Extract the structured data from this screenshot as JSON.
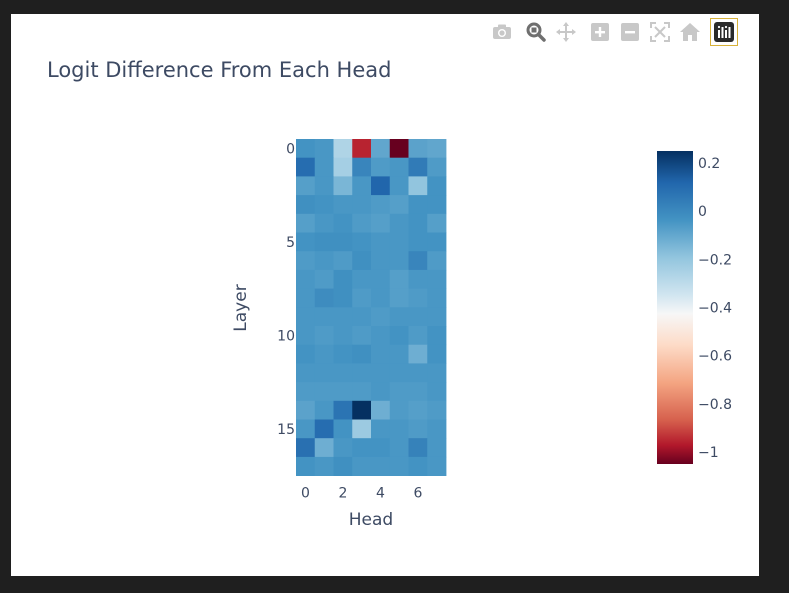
{
  "modebar": {
    "buttons": [
      {
        "icon": "camera-icon",
        "title": "Download plot as a png"
      },
      {
        "icon": "zoom-icon",
        "title": "Zoom"
      },
      {
        "icon": "pan-icon",
        "title": "Pan"
      },
      {
        "icon": "zoom-in-icon",
        "title": "Zoom in"
      },
      {
        "icon": "zoom-out-icon",
        "title": "Zoom out"
      },
      {
        "icon": "autoscale-icon",
        "title": "Autoscale"
      },
      {
        "icon": "home-icon",
        "title": "Reset axes"
      },
      {
        "icon": "plotly-logo-icon",
        "title": "Produced with Plotly"
      }
    ],
    "icon_color": "#c8c8c8",
    "active_color": "#6f6f6f",
    "logo_color": "#2a2a2a"
  },
  "chart_data": {
    "type": "heatmap",
    "title": "Logit Difference From Each Head",
    "xlabel": "Head",
    "ylabel": "Layer",
    "x": [
      0,
      1,
      2,
      3,
      4,
      5,
      6,
      7
    ],
    "y": [
      0,
      1,
      2,
      3,
      4,
      5,
      6,
      7,
      8,
      9,
      10,
      11,
      12,
      13,
      14,
      15,
      16,
      17
    ],
    "x_ticks": [
      "0",
      "2",
      "4",
      "6"
    ],
    "y_ticks": [
      "0",
      "5",
      "10",
      "15"
    ],
    "z": [
      [
        -0.01,
        -0.02,
        -0.2,
        -0.9,
        -0.06,
        -1.05,
        -0.05,
        -0.06
      ],
      [
        0.1,
        -0.02,
        -0.18,
        0.03,
        -0.03,
        -0.02,
        0.06,
        -0.03
      ],
      [
        -0.04,
        -0.02,
        -0.1,
        -0.02,
        0.12,
        -0.02,
        -0.14,
        -0.01
      ],
      [
        0.0,
        -0.01,
        -0.02,
        -0.02,
        -0.03,
        -0.04,
        -0.01,
        -0.01
      ],
      [
        -0.04,
        -0.02,
        -0.01,
        -0.03,
        -0.04,
        -0.02,
        -0.01,
        -0.04
      ],
      [
        -0.01,
        0.0,
        0.0,
        -0.01,
        -0.02,
        -0.02,
        -0.01,
        -0.01
      ],
      [
        -0.03,
        -0.02,
        -0.03,
        0.0,
        -0.02,
        -0.02,
        0.03,
        -0.03
      ],
      [
        -0.02,
        -0.03,
        0.0,
        -0.02,
        -0.02,
        -0.04,
        -0.02,
        -0.02
      ],
      [
        -0.02,
        0.01,
        0.0,
        -0.03,
        -0.02,
        -0.04,
        -0.03,
        -0.02
      ],
      [
        -0.02,
        -0.02,
        -0.02,
        -0.02,
        -0.03,
        -0.02,
        -0.02,
        -0.02
      ],
      [
        -0.02,
        -0.03,
        -0.02,
        -0.03,
        -0.02,
        -0.01,
        -0.03,
        -0.01
      ],
      [
        -0.01,
        -0.02,
        -0.01,
        0.0,
        -0.02,
        -0.02,
        -0.08,
        -0.01
      ],
      [
        -0.02,
        -0.02,
        -0.02,
        -0.02,
        -0.02,
        -0.02,
        -0.02,
        -0.02
      ],
      [
        -0.03,
        -0.03,
        -0.03,
        -0.03,
        -0.02,
        -0.03,
        -0.03,
        -0.02
      ],
      [
        -0.05,
        -0.02,
        0.08,
        0.25,
        -0.08,
        -0.03,
        -0.04,
        -0.03
      ],
      [
        -0.02,
        0.1,
        -0.01,
        -0.16,
        -0.02,
        -0.02,
        -0.03,
        -0.02
      ],
      [
        0.09,
        -0.08,
        -0.02,
        -0.01,
        -0.01,
        -0.02,
        0.04,
        -0.02
      ],
      [
        -0.01,
        -0.02,
        0.0,
        -0.02,
        -0.02,
        -0.02,
        -0.01,
        -0.02
      ]
    ],
    "zmin": -1.05,
    "zmax": 0.25,
    "colorscale": "RdBu",
    "colorbar_ticks": [
      "0.2",
      "0",
      "−0.2",
      "−0.4",
      "−0.6",
      "−0.8",
      "−1"
    ],
    "colorbar_tick_values": [
      0.2,
      0,
      -0.2,
      -0.4,
      -0.6,
      -0.8,
      -1
    ],
    "yaxis_reversed": true,
    "legend": "colorbar-right"
  }
}
